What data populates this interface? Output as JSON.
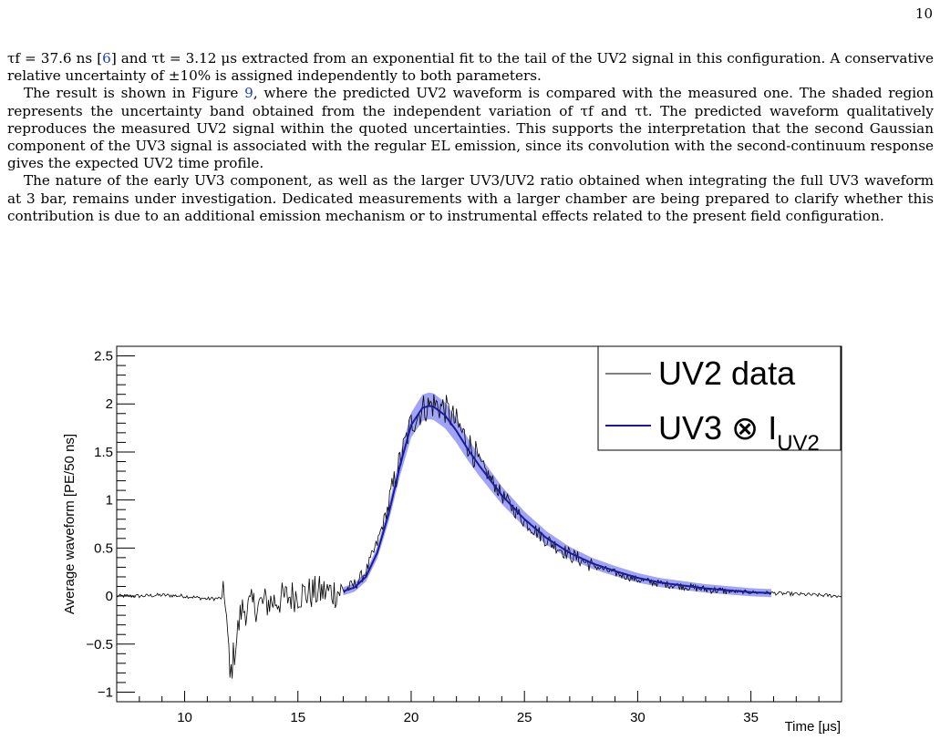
{
  "page": {
    "number": "10"
  },
  "paragraphs": [
    {
      "p1_a": "τf = 37.6 ns [",
      "p1_ref1": "6",
      "p1_b": "] and τt = 3.12 μs extracted from an exponential fit to the tail of the UV2 signal in this configuration. A conservative relative uncertainty of ±10% is assigned independently to both parameters."
    },
    {
      "p2_a": "The result is shown in Figure ",
      "p2_ref": "9",
      "p2_b": ", where the predicted UV2 waveform is compared with the measured one. The shaded region represents the uncertainty band obtained from the independent variation of τf and τt. The predicted waveform qualitatively reproduces the measured UV2 signal within the quoted uncertainties. This supports the interpretation that the second Gaussian component of the UV3 signal is associated with the regular EL emission, since its convolution with the second-continuum response gives the expected UV2 time profile."
    },
    {
      "p3": "The nature of the early UV3 component, as well as the larger UV3/UV2 ratio obtained when integrating the full UV3 waveform at 3 bar, remains under investigation. Dedicated measurements with a larger chamber are being prepared to clarify whether this contribution is due to an additional emission mechanism or to instrumental effects related to the present field configuration."
    }
  ],
  "chart_data": {
    "type": "line",
    "xlabel": "Time [μs]",
    "ylabel": "Average waveform [PE/50 ns]",
    "xlim": [
      7,
      39
    ],
    "ylim": [
      -1.1,
      2.6
    ],
    "x_ticks": [
      10,
      15,
      20,
      25,
      30,
      35
    ],
    "y_ticks": [
      -1,
      -0.5,
      0,
      0.5,
      1,
      1.5,
      2,
      2.5
    ],
    "y_tick_labels": [
      "−1",
      "−0.5",
      "0",
      "0.5",
      "1",
      "1.5",
      "2",
      "2.5"
    ],
    "x_tick_labels": [
      "10",
      "15",
      "20",
      "25",
      "30",
      "35"
    ],
    "legend": {
      "placement": "top-right",
      "entries": [
        {
          "label": "UV2 data",
          "color": "#000000"
        },
        {
          "label_main": "UV3 ⊗ I",
          "label_sub": "UV2",
          "color": "#1a1aa0"
        }
      ]
    },
    "band_color": "#7f86f0",
    "series": [
      {
        "name": "UV2 data",
        "color": "#000000",
        "x": [
          7,
          8,
          9,
          10,
          11,
          11.8,
          12,
          12.5,
          13,
          14,
          15,
          16,
          17,
          17.5,
          18,
          18.5,
          19,
          19.5,
          20,
          20.5,
          21,
          21.5,
          22,
          22.5,
          23,
          24,
          25,
          26,
          27,
          28,
          29,
          30,
          31,
          32,
          33,
          34,
          35,
          36,
          37,
          38,
          39
        ],
        "y": [
          0.0,
          0.0,
          0.01,
          0.0,
          -0.03,
          -0.02,
          -0.85,
          -0.15,
          -0.1,
          -0.05,
          0.02,
          0.04,
          0.05,
          0.12,
          0.25,
          0.55,
          0.95,
          1.4,
          1.8,
          1.95,
          2.0,
          1.95,
          1.8,
          1.6,
          1.4,
          1.05,
          0.78,
          0.58,
          0.43,
          0.32,
          0.24,
          0.17,
          0.13,
          0.1,
          0.07,
          0.05,
          0.04,
          0.03,
          0.02,
          0.01,
          0.0
        ]
      },
      {
        "name": "UV3 ⊗ IUV2",
        "color": "#1a1aa0",
        "x": [
          17,
          17.5,
          18,
          18.5,
          19,
          19.5,
          20,
          20.5,
          20.8,
          21,
          21.5,
          22,
          22.5,
          23,
          24,
          25,
          26,
          27,
          28,
          29,
          30,
          31,
          32,
          33,
          34,
          35,
          36
        ],
        "y": [
          0.05,
          0.09,
          0.2,
          0.45,
          0.85,
          1.35,
          1.78,
          1.96,
          1.98,
          1.97,
          1.88,
          1.72,
          1.53,
          1.36,
          1.05,
          0.8,
          0.6,
          0.45,
          0.34,
          0.26,
          0.19,
          0.14,
          0.11,
          0.08,
          0.06,
          0.04,
          0.03
        ]
      }
    ]
  }
}
